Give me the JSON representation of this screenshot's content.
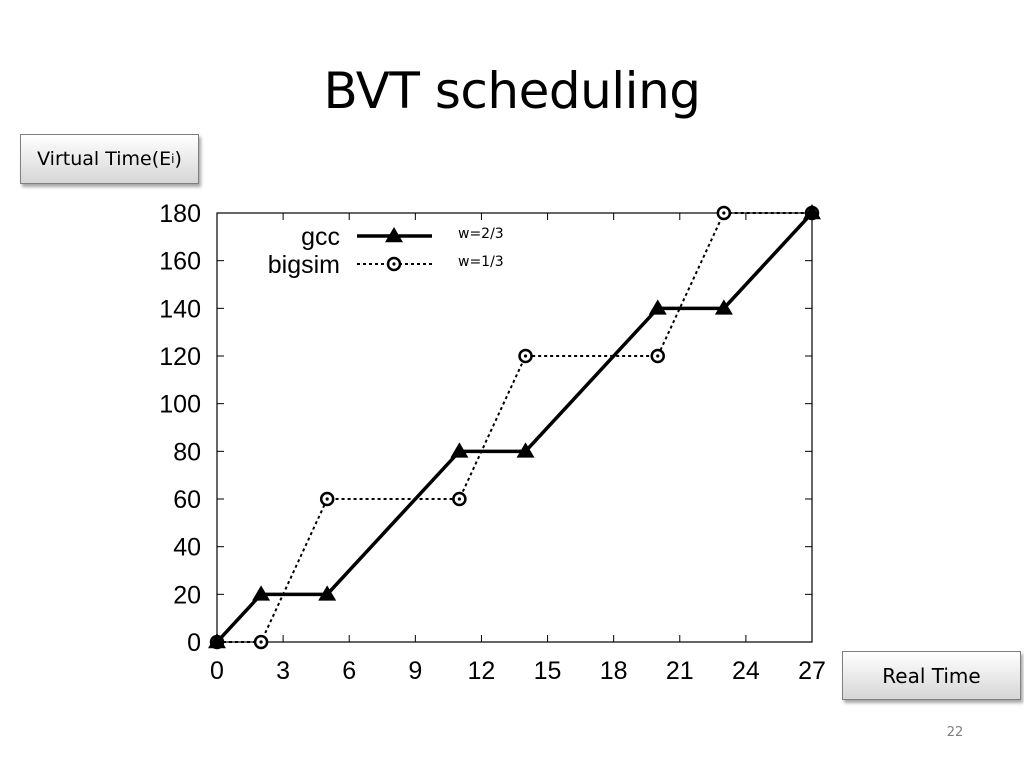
{
  "slide": {
    "title": "BVT scheduling",
    "y_tag_text": "Virtual Time(E",
    "y_tag_sub": "i",
    "y_tag_close": ")",
    "x_tag_text": "Real Time",
    "page_number": "22"
  },
  "chart_data": {
    "type": "line",
    "xlim": [
      0,
      27
    ],
    "ylim": [
      0,
      180
    ],
    "x_ticks": [
      0,
      3,
      6,
      9,
      12,
      15,
      18,
      21,
      24,
      27
    ],
    "y_ticks": [
      0,
      20,
      40,
      60,
      80,
      100,
      120,
      140,
      160,
      180
    ],
    "grid": false,
    "legend_position": "top-left",
    "series": [
      {
        "name": "gcc",
        "weight_label": "w=2/3",
        "style": "solid",
        "marker": "triangle",
        "color": "#000000",
        "x": [
          0,
          2,
          5,
          11,
          14,
          20,
          23,
          27
        ],
        "y": [
          0,
          20,
          20,
          80,
          80,
          140,
          140,
          180
        ]
      },
      {
        "name": "bigsim",
        "weight_label": "w=1/3",
        "style": "dotted",
        "marker": "circle",
        "color": "#000000",
        "x": [
          0,
          2,
          5,
          11,
          14,
          20,
          23,
          27
        ],
        "y": [
          0,
          0,
          60,
          60,
          120,
          120,
          180,
          180
        ]
      }
    ]
  }
}
